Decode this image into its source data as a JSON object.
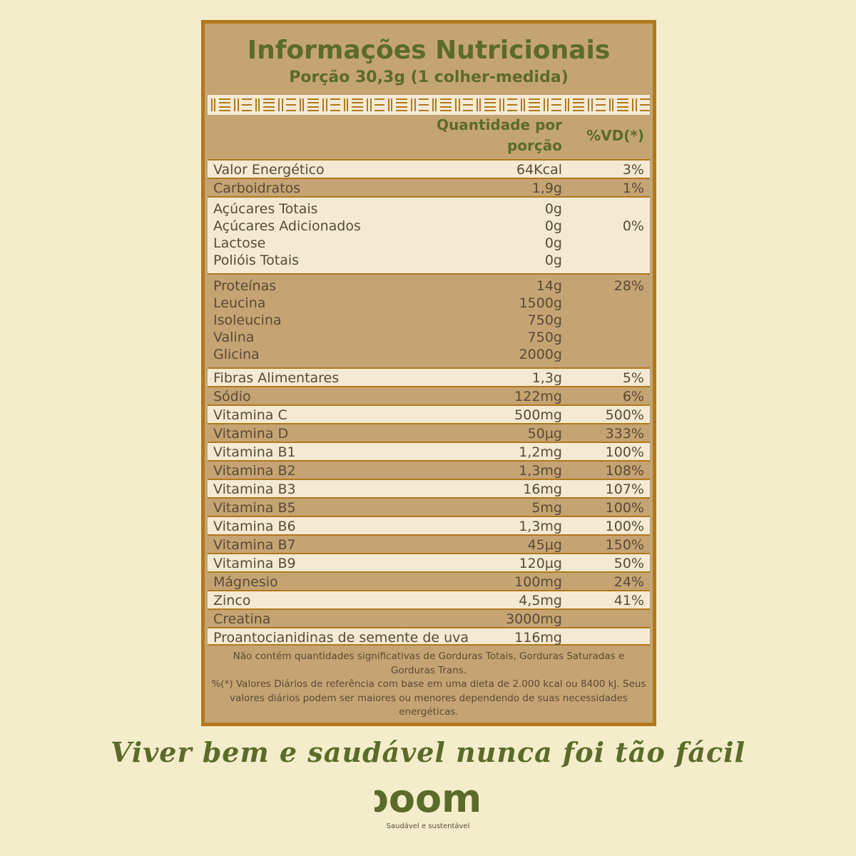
{
  "label": {
    "title": "Informações Nutricionais",
    "serving": "Porção 30,3g (1 colher-medida)",
    "header": {
      "qty_line1": "Quantidade por",
      "qty_line2": "porção",
      "vd": "%VD(*)"
    },
    "groups": [
      {
        "shade": "light",
        "lines": [
          {
            "name": "Valor Energético",
            "qty": "64Kcal",
            "vd": "3%"
          }
        ]
      },
      {
        "shade": "dark",
        "lines": [
          {
            "name": "Carboidratos",
            "qty": "1,9g",
            "vd": "1%"
          }
        ]
      },
      {
        "shade": "light",
        "lines": [
          {
            "name": "Açúcares Totais",
            "qty": "0g",
            "vd": ""
          },
          {
            "name": "Açúcares Adicionados",
            "qty": "0g",
            "vd": "0%"
          },
          {
            "name": "Lactose",
            "qty": "0g",
            "vd": ""
          },
          {
            "name": "Polióis Totais",
            "qty": "0g",
            "vd": ""
          }
        ]
      },
      {
        "shade": "dark",
        "lines": [
          {
            "name": "Proteínas",
            "qty": "14g",
            "vd": "28%"
          },
          {
            "name": "Leucina",
            "qty": "1500g",
            "vd": ""
          },
          {
            "name": "Isoleucina",
            "qty": "750g",
            "vd": ""
          },
          {
            "name": "Valina",
            "qty": "750g",
            "vd": ""
          },
          {
            "name": "Glicina",
            "qty": "2000g",
            "vd": ""
          }
        ]
      },
      {
        "shade": "light",
        "lines": [
          {
            "name": "Fibras Alimentares",
            "qty": "1,3g",
            "vd": "5%"
          }
        ]
      },
      {
        "shade": "dark",
        "lines": [
          {
            "name": "Sódio",
            "qty": "122mg",
            "vd": "6%"
          }
        ]
      },
      {
        "shade": "light",
        "lines": [
          {
            "name": "Vitamina C",
            "qty": "500mg",
            "vd": "500%"
          }
        ]
      },
      {
        "shade": "dark",
        "lines": [
          {
            "name": "Vitamina D",
            "qty": "50µg",
            "vd": "333%"
          }
        ]
      },
      {
        "shade": "light",
        "lines": [
          {
            "name": "Vitamina B1",
            "qty": "1,2mg",
            "vd": "100%"
          }
        ]
      },
      {
        "shade": "dark",
        "lines": [
          {
            "name": "Vitamina B2",
            "qty": "1,3mg",
            "vd": "108%"
          }
        ]
      },
      {
        "shade": "light",
        "lines": [
          {
            "name": "Vitamina B3",
            "qty": "16mg",
            "vd": "107%"
          }
        ]
      },
      {
        "shade": "dark",
        "lines": [
          {
            "name": "Vitamina B5",
            "qty": "5mg",
            "vd": "100%"
          }
        ]
      },
      {
        "shade": "light",
        "lines": [
          {
            "name": "Vitamina B6",
            "qty": "1,3mg",
            "vd": "100%"
          }
        ]
      },
      {
        "shade": "dark",
        "lines": [
          {
            "name": "Vitamina B7",
            "qty": "45µg",
            "vd": "150%"
          }
        ]
      },
      {
        "shade": "light",
        "lines": [
          {
            "name": "Vitamina B9",
            "qty": "120µg",
            "vd": "50%"
          }
        ]
      },
      {
        "shade": "dark",
        "lines": [
          {
            "name": "Mágnesio",
            "qty": "100mg",
            "vd": "24%"
          }
        ]
      },
      {
        "shade": "light",
        "lines": [
          {
            "name": "Zinco",
            "qty": "4,5mg",
            "vd": "41%"
          }
        ]
      },
      {
        "shade": "dark",
        "lines": [
          {
            "name": "Creatina",
            "qty": "3000mg",
            "vd": ""
          }
        ]
      },
      {
        "shade": "light",
        "lines": [
          {
            "name": "Proantocianidinas de semente de uva",
            "qty": "116mg",
            "vd": ""
          }
        ]
      }
    ],
    "footnote_1": "Não contém quantidades significativas de Gorduras Totais, Gorduras Saturadas e Gorduras Trans.",
    "footnote_2": "%(*) Valores Diários de referência com base em uma dieta de 2.000 kcal ou 8400 kJ. Seus valores diários podem ser maiores ou menores dependendo de suas necessidades energéticas."
  },
  "tagline": "Viver bem e saudável nunca foi tão fácil",
  "brand": {
    "name": "boomi",
    "slogan": "Saudável e sustentável"
  },
  "colors": {
    "background": "#f4edcb",
    "panel": "#c5a474",
    "row_light": "#f4ead4",
    "border": "#b1781c",
    "green": "#5b6b2a",
    "text": "#5a4a34"
  }
}
